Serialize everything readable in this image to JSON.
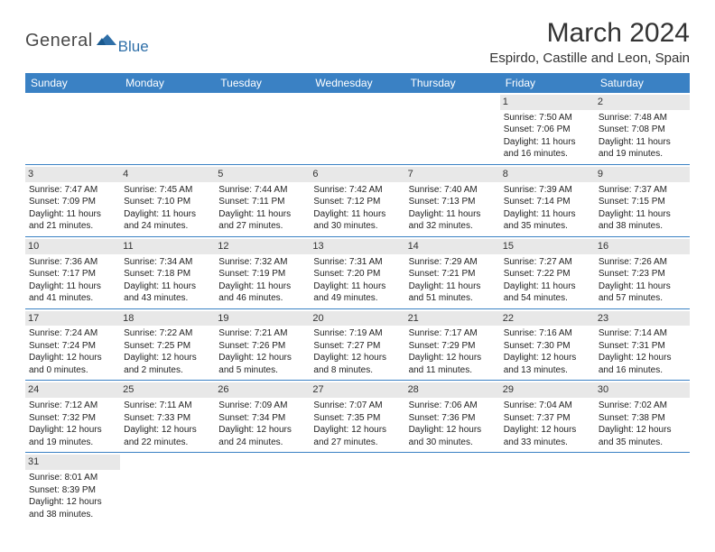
{
  "logo": {
    "text_general": "General",
    "text_blue": "Blue",
    "icon_color": "#2f6fa8"
  },
  "header": {
    "month_title": "March 2024",
    "location": "Espirdo, Castille and Leon, Spain"
  },
  "colors": {
    "header_bg": "#3a81c4",
    "header_text": "#ffffff",
    "daynum_bg": "#e8e8e8",
    "row_border": "#3a81c4",
    "body_text": "#333333"
  },
  "weekdays": [
    "Sunday",
    "Monday",
    "Tuesday",
    "Wednesday",
    "Thursday",
    "Friday",
    "Saturday"
  ],
  "weeks": [
    [
      null,
      null,
      null,
      null,
      null,
      {
        "n": "1",
        "sunrise": "7:50 AM",
        "sunset": "7:06 PM",
        "daylight": "11 hours and 16 minutes."
      },
      {
        "n": "2",
        "sunrise": "7:48 AM",
        "sunset": "7:08 PM",
        "daylight": "11 hours and 19 minutes."
      }
    ],
    [
      {
        "n": "3",
        "sunrise": "7:47 AM",
        "sunset": "7:09 PM",
        "daylight": "11 hours and 21 minutes."
      },
      {
        "n": "4",
        "sunrise": "7:45 AM",
        "sunset": "7:10 PM",
        "daylight": "11 hours and 24 minutes."
      },
      {
        "n": "5",
        "sunrise": "7:44 AM",
        "sunset": "7:11 PM",
        "daylight": "11 hours and 27 minutes."
      },
      {
        "n": "6",
        "sunrise": "7:42 AM",
        "sunset": "7:12 PM",
        "daylight": "11 hours and 30 minutes."
      },
      {
        "n": "7",
        "sunrise": "7:40 AM",
        "sunset": "7:13 PM",
        "daylight": "11 hours and 32 minutes."
      },
      {
        "n": "8",
        "sunrise": "7:39 AM",
        "sunset": "7:14 PM",
        "daylight": "11 hours and 35 minutes."
      },
      {
        "n": "9",
        "sunrise": "7:37 AM",
        "sunset": "7:15 PM",
        "daylight": "11 hours and 38 minutes."
      }
    ],
    [
      {
        "n": "10",
        "sunrise": "7:36 AM",
        "sunset": "7:17 PM",
        "daylight": "11 hours and 41 minutes."
      },
      {
        "n": "11",
        "sunrise": "7:34 AM",
        "sunset": "7:18 PM",
        "daylight": "11 hours and 43 minutes."
      },
      {
        "n": "12",
        "sunrise": "7:32 AM",
        "sunset": "7:19 PM",
        "daylight": "11 hours and 46 minutes."
      },
      {
        "n": "13",
        "sunrise": "7:31 AM",
        "sunset": "7:20 PM",
        "daylight": "11 hours and 49 minutes."
      },
      {
        "n": "14",
        "sunrise": "7:29 AM",
        "sunset": "7:21 PM",
        "daylight": "11 hours and 51 minutes."
      },
      {
        "n": "15",
        "sunrise": "7:27 AM",
        "sunset": "7:22 PM",
        "daylight": "11 hours and 54 minutes."
      },
      {
        "n": "16",
        "sunrise": "7:26 AM",
        "sunset": "7:23 PM",
        "daylight": "11 hours and 57 minutes."
      }
    ],
    [
      {
        "n": "17",
        "sunrise": "7:24 AM",
        "sunset": "7:24 PM",
        "daylight": "12 hours and 0 minutes."
      },
      {
        "n": "18",
        "sunrise": "7:22 AM",
        "sunset": "7:25 PM",
        "daylight": "12 hours and 2 minutes."
      },
      {
        "n": "19",
        "sunrise": "7:21 AM",
        "sunset": "7:26 PM",
        "daylight": "12 hours and 5 minutes."
      },
      {
        "n": "20",
        "sunrise": "7:19 AM",
        "sunset": "7:27 PM",
        "daylight": "12 hours and 8 minutes."
      },
      {
        "n": "21",
        "sunrise": "7:17 AM",
        "sunset": "7:29 PM",
        "daylight": "12 hours and 11 minutes."
      },
      {
        "n": "22",
        "sunrise": "7:16 AM",
        "sunset": "7:30 PM",
        "daylight": "12 hours and 13 minutes."
      },
      {
        "n": "23",
        "sunrise": "7:14 AM",
        "sunset": "7:31 PM",
        "daylight": "12 hours and 16 minutes."
      }
    ],
    [
      {
        "n": "24",
        "sunrise": "7:12 AM",
        "sunset": "7:32 PM",
        "daylight": "12 hours and 19 minutes."
      },
      {
        "n": "25",
        "sunrise": "7:11 AM",
        "sunset": "7:33 PM",
        "daylight": "12 hours and 22 minutes."
      },
      {
        "n": "26",
        "sunrise": "7:09 AM",
        "sunset": "7:34 PM",
        "daylight": "12 hours and 24 minutes."
      },
      {
        "n": "27",
        "sunrise": "7:07 AM",
        "sunset": "7:35 PM",
        "daylight": "12 hours and 27 minutes."
      },
      {
        "n": "28",
        "sunrise": "7:06 AM",
        "sunset": "7:36 PM",
        "daylight": "12 hours and 30 minutes."
      },
      {
        "n": "29",
        "sunrise": "7:04 AM",
        "sunset": "7:37 PM",
        "daylight": "12 hours and 33 minutes."
      },
      {
        "n": "30",
        "sunrise": "7:02 AM",
        "sunset": "7:38 PM",
        "daylight": "12 hours and 35 minutes."
      }
    ],
    [
      {
        "n": "31",
        "sunrise": "8:01 AM",
        "sunset": "8:39 PM",
        "daylight": "12 hours and 38 minutes."
      },
      null,
      null,
      null,
      null,
      null,
      null
    ]
  ],
  "labels": {
    "sunrise": "Sunrise: ",
    "sunset": "Sunset: ",
    "daylight": "Daylight: "
  }
}
